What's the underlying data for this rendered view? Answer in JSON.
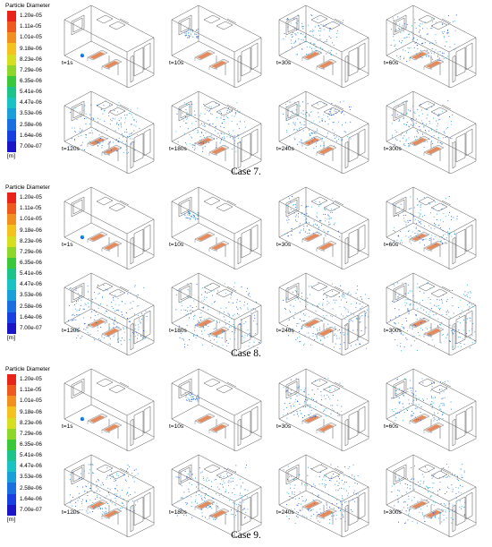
{
  "legend": {
    "title": "Particle Diameter",
    "unit": "[m]",
    "labels": [
      "1.20e-05",
      "1.11e-05",
      "1.01e-05",
      "9.18e-06",
      "8.23e-06",
      "7.29e-06",
      "6.35e-06",
      "5.41e-06",
      "4.47e-06",
      "3.53e-06",
      "2.58e-06",
      "1.64e-06",
      "7.00e-07"
    ],
    "colors": [
      "#e8241a",
      "#ee5a1d",
      "#f2901f",
      "#f4c21f",
      "#d6df1f",
      "#8ed62a",
      "#39c83a",
      "#1dc48a",
      "#1ac3c3",
      "#1a9fd9",
      "#1a6fe0",
      "#1a3fe0",
      "#1a16c8"
    ]
  },
  "cases": [
    {
      "caption": "Case 7.",
      "times": [
        "t=1s",
        "t=10s",
        "t=30s",
        "t=60s",
        "t=120s",
        "t=180s",
        "t=240s",
        "t=300s"
      ],
      "spread": [
        0.02,
        0.12,
        0.5,
        0.62,
        0.72,
        0.7,
        0.65,
        0.6
      ]
    },
    {
      "caption": "Case 8.",
      "times": [
        "t=1s",
        "t=10s",
        "t=30s",
        "t=60s",
        "t=120s",
        "t=180s",
        "t=240s",
        "t=300s"
      ],
      "spread": [
        0.02,
        0.14,
        0.5,
        0.65,
        0.85,
        0.9,
        0.92,
        0.95
      ]
    },
    {
      "caption": "Case 9.",
      "times": [
        "t=1s",
        "t=10s",
        "t=30s",
        "t=60s",
        "t=120s",
        "t=180s",
        "t=240s",
        "t=300s"
      ],
      "spread": [
        0.02,
        0.12,
        0.5,
        0.55,
        0.7,
        0.75,
        0.8,
        0.8
      ]
    }
  ]
}
